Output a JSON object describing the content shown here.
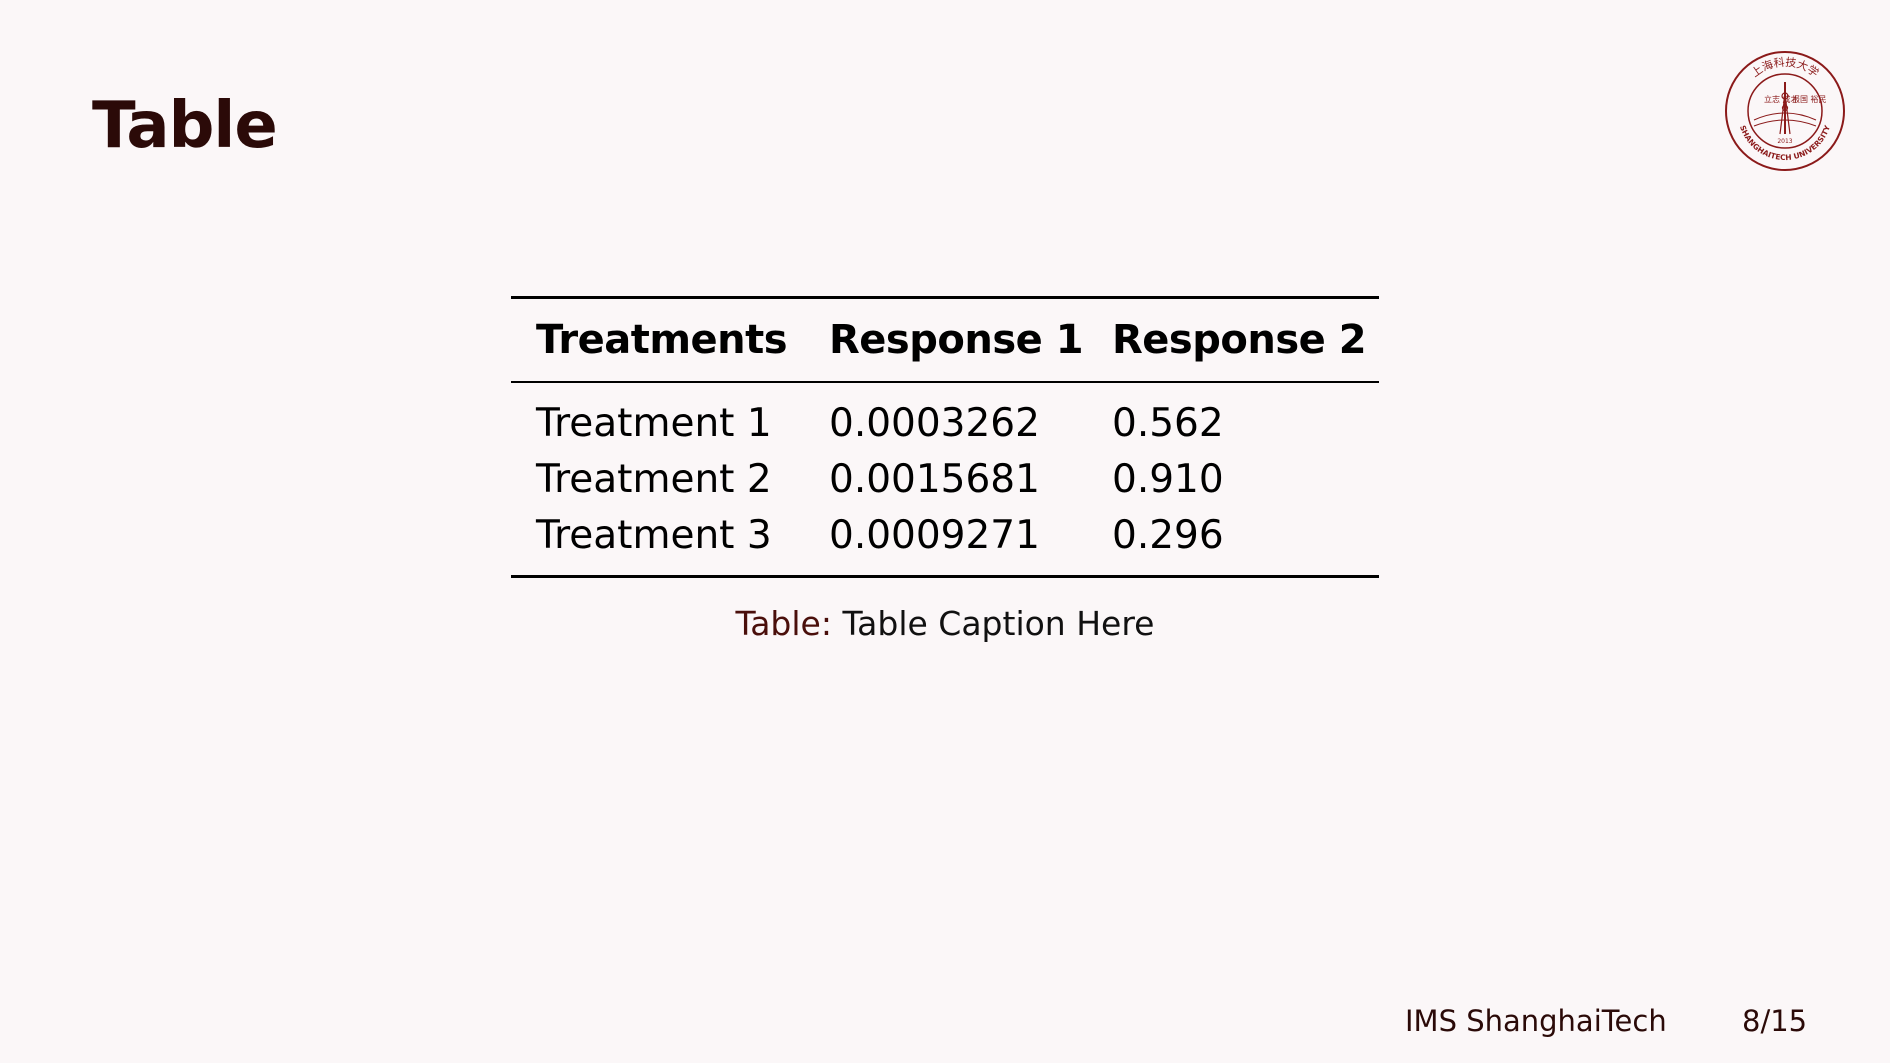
{
  "slide": {
    "title": "Table"
  },
  "logo": {
    "top_text": "上海科技大学",
    "bottom_text": "SHANGHAITECH UNIVERSITY",
    "year": "2013",
    "left_chars": "立志 成才",
    "right_chars": "报国 裕民",
    "color": "#8b1a1a"
  },
  "table": {
    "headers": [
      "Treatments",
      "Response 1",
      "Response 2"
    ],
    "rows": [
      [
        "Treatment 1",
        "0.0003262",
        "0.562"
      ],
      [
        "Treatment 2",
        "0.0015681",
        "0.910"
      ],
      [
        "Treatment 3",
        "0.0009271",
        "0.296"
      ]
    ]
  },
  "caption": {
    "label": "Table:",
    "text": "Table Caption Here"
  },
  "footer": {
    "org": "IMS ShanghaiTech",
    "page": "8/15"
  },
  "colors": {
    "background": "#fbf7f8",
    "title": "#2b0a08",
    "accent": "#4a0f0b"
  }
}
